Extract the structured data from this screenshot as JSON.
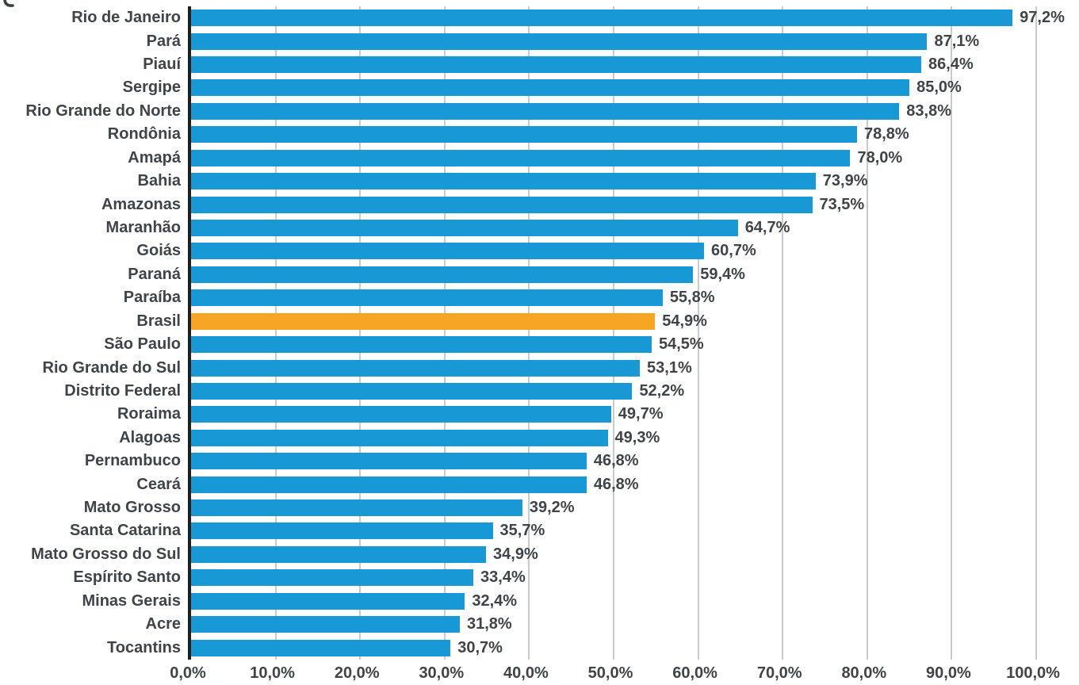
{
  "chart_data": {
    "type": "bar",
    "orientation": "horizontal",
    "title": "",
    "xlabel": "",
    "ylabel": "",
    "xlim": [
      0,
      100
    ],
    "grid": true,
    "legend": false,
    "categories": [
      "Rio de Janeiro",
      "Pará",
      "Piauí",
      "Sergipe",
      "Rio Grande do Norte",
      "Rondônia",
      "Amapá",
      "Bahia",
      "Amazonas",
      "Maranhão",
      "Goiás",
      "Paraná",
      "Paraíba",
      "Brasil",
      "São Paulo",
      "Rio Grande do Sul",
      "Distrito Federal",
      "Roraima",
      "Alagoas",
      "Pernambuco",
      "Ceará",
      "Mato Grosso",
      "Santa Catarina",
      "Mato Grosso do Sul",
      "Espírito Santo",
      "Minas Gerais",
      "Acre",
      "Tocantins"
    ],
    "values": [
      97.2,
      87.1,
      86.4,
      85.0,
      83.8,
      78.8,
      78.0,
      73.9,
      73.5,
      64.7,
      60.7,
      59.4,
      55.8,
      54.9,
      54.5,
      53.1,
      52.2,
      49.7,
      49.3,
      46.8,
      46.8,
      39.2,
      35.7,
      34.9,
      33.4,
      32.4,
      31.8,
      30.7
    ],
    "value_labels": [
      "97,2%",
      "87,1%",
      "86,4%",
      "85,0%",
      "83,8%",
      "78,8%",
      "78,0%",
      "73,9%",
      "73,5%",
      "64,7%",
      "60,7%",
      "59,4%",
      "55,8%",
      "54,9%",
      "54,5%",
      "53,1%",
      "52,2%",
      "49,7%",
      "49,3%",
      "46,8%",
      "46,8%",
      "39,2%",
      "35,7%",
      "34,9%",
      "33,4%",
      "32,4%",
      "31,8%",
      "30,7%"
    ],
    "highlight_category": "Brasil",
    "x_ticks": [
      "0,0%",
      "10,0%",
      "20,0%",
      "30,0%",
      "40,0%",
      "50,0%",
      "60,0%",
      "70,0%",
      "80,0%",
      "90,0%",
      "100,0%"
    ],
    "colors": {
      "bar": "#1899d6",
      "highlight": "#f7a524",
      "grid": "#c8cccd",
      "axis": "#1e2022",
      "text": "#3f4448"
    }
  }
}
